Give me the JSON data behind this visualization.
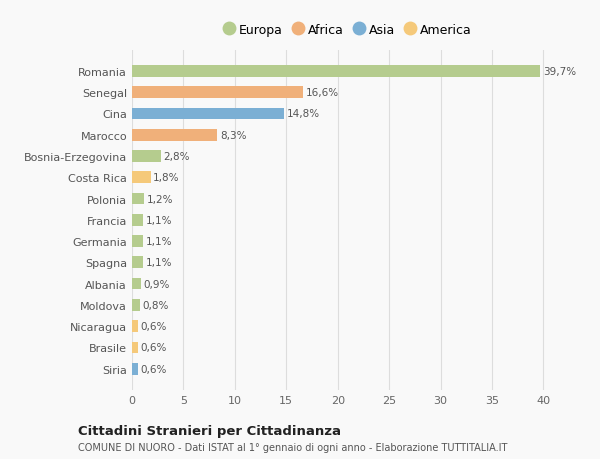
{
  "categories": [
    "Siria",
    "Brasile",
    "Nicaragua",
    "Moldova",
    "Albania",
    "Spagna",
    "Germania",
    "Francia",
    "Polonia",
    "Costa Rica",
    "Bosnia-Erzegovina",
    "Marocco",
    "Cina",
    "Senegal",
    "Romania"
  ],
  "values": [
    0.6,
    0.6,
    0.6,
    0.8,
    0.9,
    1.1,
    1.1,
    1.1,
    1.2,
    1.8,
    2.8,
    8.3,
    14.8,
    16.6,
    39.7
  ],
  "labels": [
    "0,6%",
    "0,6%",
    "0,6%",
    "0,8%",
    "0,9%",
    "1,1%",
    "1,1%",
    "1,1%",
    "1,2%",
    "1,8%",
    "2,8%",
    "8,3%",
    "14,8%",
    "16,6%",
    "39,7%"
  ],
  "colors": [
    "#7bafd4",
    "#f5c97a",
    "#f5c97a",
    "#b5cc8e",
    "#b5cc8e",
    "#b5cc8e",
    "#b5cc8e",
    "#b5cc8e",
    "#b5cc8e",
    "#f5c97a",
    "#b5cc8e",
    "#f0b07a",
    "#7bafd4",
    "#f0b07a",
    "#b5cc8e"
  ],
  "legend_labels": [
    "Europa",
    "Africa",
    "Asia",
    "America"
  ],
  "legend_colors": [
    "#b5cc8e",
    "#f0b07a",
    "#7bafd4",
    "#f5c97a"
  ],
  "title": "Cittadini Stranieri per Cittadinanza",
  "subtitle": "COMUNE DI NUORO - Dati ISTAT al 1° gennaio di ogni anno - Elaborazione TUTTITALIA.IT",
  "xlim": [
    0,
    42
  ],
  "xticks": [
    0,
    5,
    10,
    15,
    20,
    25,
    30,
    35,
    40
  ],
  "background_color": "#f9f9f9",
  "bar_height": 0.55,
  "grid_color": "#dddddd",
  "label_fontsize": 7.5,
  "tick_fontsize": 8,
  "legend_fontsize": 9
}
